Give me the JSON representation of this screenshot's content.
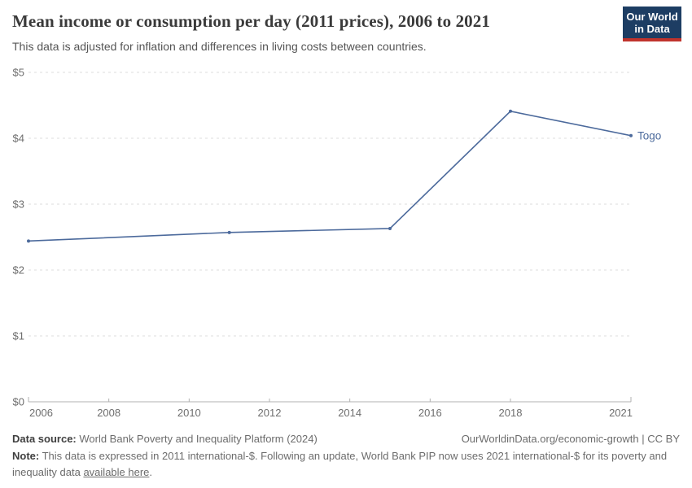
{
  "header": {
    "title": "Mean income or consumption per day (2011 prices), 2006 to 2021",
    "subtitle": "This data is adjusted for inflation and differences in living costs between countries.",
    "logo": {
      "line1": "Our World",
      "line2": "in Data"
    }
  },
  "chart_data": {
    "type": "line",
    "title": "Mean income or consumption per day (2011 prices), 2006 to 2021",
    "xlabel": "",
    "ylabel": "",
    "xlim": [
      2006,
      2021
    ],
    "ylim": [
      0,
      5
    ],
    "x_ticks": [
      2006,
      2008,
      2010,
      2012,
      2014,
      2016,
      2018,
      2021
    ],
    "y_ticks": [
      0,
      1,
      2,
      3,
      4,
      5
    ],
    "y_tick_prefix": "$",
    "grid": "horizontal-dashed",
    "legend": "end-of-line-label",
    "series": [
      {
        "name": "Togo",
        "color": "#4c6a9c",
        "x": [
          2006,
          2011,
          2015,
          2018,
          2021
        ],
        "values": [
          2.44,
          2.57,
          2.63,
          4.41,
          4.04
        ]
      }
    ]
  },
  "footer": {
    "datasource_label": "Data source:",
    "datasource_text": " World Bank Poverty and Inequality Platform (2024)",
    "citation_link": "OurWorldinData.org/economic-growth",
    "citation_sep": " | ",
    "citation_license": "CC BY",
    "note_label": "Note:",
    "note_text": " This data is expressed in 2011 international-$. Following an update, World Bank PIP now uses 2021 international-$ for its poverty and inequality data ",
    "note_link": "available here",
    "note_suffix": "."
  },
  "colors": {
    "line": "#4c6a9c",
    "gridline": "#dcdcdc",
    "axis_line": "#b0b0b0",
    "axis_text": "#6e6e6e",
    "logo_bg": "#1d3d63",
    "logo_underline": "#c0332c",
    "title_text": "#3a3a3a",
    "subtitle_text": "#555555"
  }
}
